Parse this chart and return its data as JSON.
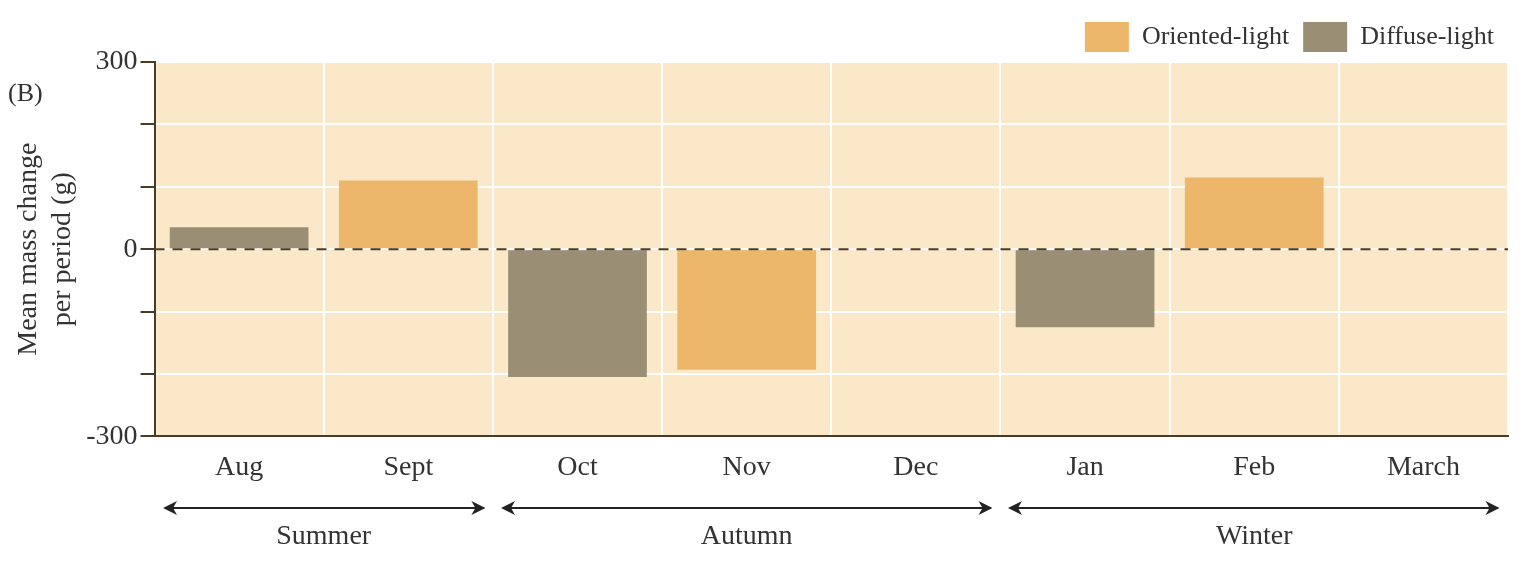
{
  "chart_data": {
    "type": "bar",
    "ylabel": "Mean mass change\nper period (g)",
    "categories": [
      "Aug",
      "Sept",
      "Oct",
      "Nov",
      "Dec",
      "Jan",
      "Feb",
      "March"
    ],
    "series": [
      {
        "name": "Oriented-light",
        "color": "#ecb76a",
        "values": [
          null,
          110,
          null,
          -193,
          null,
          null,
          115,
          null
        ]
      },
      {
        "name": "Diffuse-light",
        "color": "#9a8f74",
        "values": [
          35,
          null,
          -205,
          null,
          null,
          -125,
          null,
          null
        ]
      }
    ],
    "ylim": [
      -300,
      300
    ],
    "yticks": [
      -300,
      {
        "value": -200,
        "label": null
      },
      {
        "value": -100,
        "label": null
      },
      0,
      {
        "value": 100,
        "label": null
      },
      {
        "value": 200,
        "label": null
      },
      300
    ],
    "ref_lines": [
      {
        "axis": "y",
        "value": 0,
        "line_style": "dashed",
        "color": "#4a3b22"
      }
    ],
    "grid": true,
    "legend": "top right",
    "annotations": [
      "(B)",
      "Summer",
      "Autumn",
      "Winter"
    ]
  }
}
